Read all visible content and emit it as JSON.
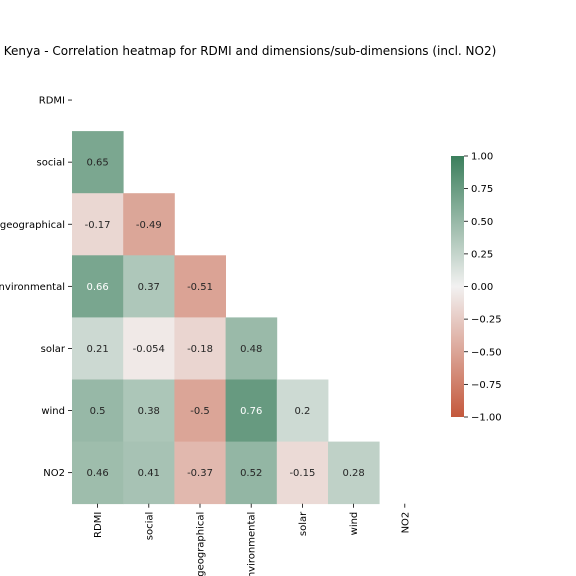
{
  "chart_data": {
    "type": "heatmap",
    "title": "Kenya - Correlation heatmap for RDMI and dimensions/sub-dimensions (incl. NO2)",
    "row_labels": [
      "RDMI",
      "social",
      "geographical",
      "environmental",
      "solar",
      "wind",
      "NO2"
    ],
    "col_labels": [
      "RDMI",
      "social",
      "geographical",
      "environmental",
      "solar",
      "wind",
      "NO2"
    ],
    "mask": "upper-triangle-including-diagonal",
    "cells": [
      {
        "row": "social",
        "col": "RDMI",
        "value": 0.65
      },
      {
        "row": "geographical",
        "col": "RDMI",
        "value": -0.17
      },
      {
        "row": "geographical",
        "col": "social",
        "value": -0.49
      },
      {
        "row": "environmental",
        "col": "RDMI",
        "value": 0.66
      },
      {
        "row": "environmental",
        "col": "social",
        "value": 0.37
      },
      {
        "row": "environmental",
        "col": "geographical",
        "value": -0.51
      },
      {
        "row": "solar",
        "col": "RDMI",
        "value": 0.21
      },
      {
        "row": "solar",
        "col": "social",
        "value": -0.054
      },
      {
        "row": "solar",
        "col": "geographical",
        "value": -0.18
      },
      {
        "row": "solar",
        "col": "environmental",
        "value": 0.48
      },
      {
        "row": "wind",
        "col": "RDMI",
        "value": 0.5
      },
      {
        "row": "wind",
        "col": "social",
        "value": 0.38
      },
      {
        "row": "wind",
        "col": "geographical",
        "value": -0.5
      },
      {
        "row": "wind",
        "col": "environmental",
        "value": 0.76
      },
      {
        "row": "wind",
        "col": "solar",
        "value": 0.2
      },
      {
        "row": "NO2",
        "col": "RDMI",
        "value": 0.46
      },
      {
        "row": "NO2",
        "col": "social",
        "value": 0.41
      },
      {
        "row": "NO2",
        "col": "geographical",
        "value": -0.37
      },
      {
        "row": "NO2",
        "col": "environmental",
        "value": 0.52
      },
      {
        "row": "NO2",
        "col": "solar",
        "value": -0.15
      },
      {
        "row": "NO2",
        "col": "wind",
        "value": 0.28
      }
    ],
    "colorbar": {
      "range": [
        -1.0,
        1.0
      ],
      "ticks": [
        "1.00",
        "0.75",
        "0.50",
        "0.25",
        "0.00",
        "−0.25",
        "−0.50",
        "−0.75",
        "−1.00"
      ],
      "tick_values": [
        1.0,
        0.75,
        0.5,
        0.25,
        0.0,
        -0.25,
        -0.5,
        -0.75,
        -1.0
      ],
      "negative_color": "#c4583c",
      "center_color": "#f2f1f1",
      "positive_color": "#3b7f5c"
    }
  }
}
